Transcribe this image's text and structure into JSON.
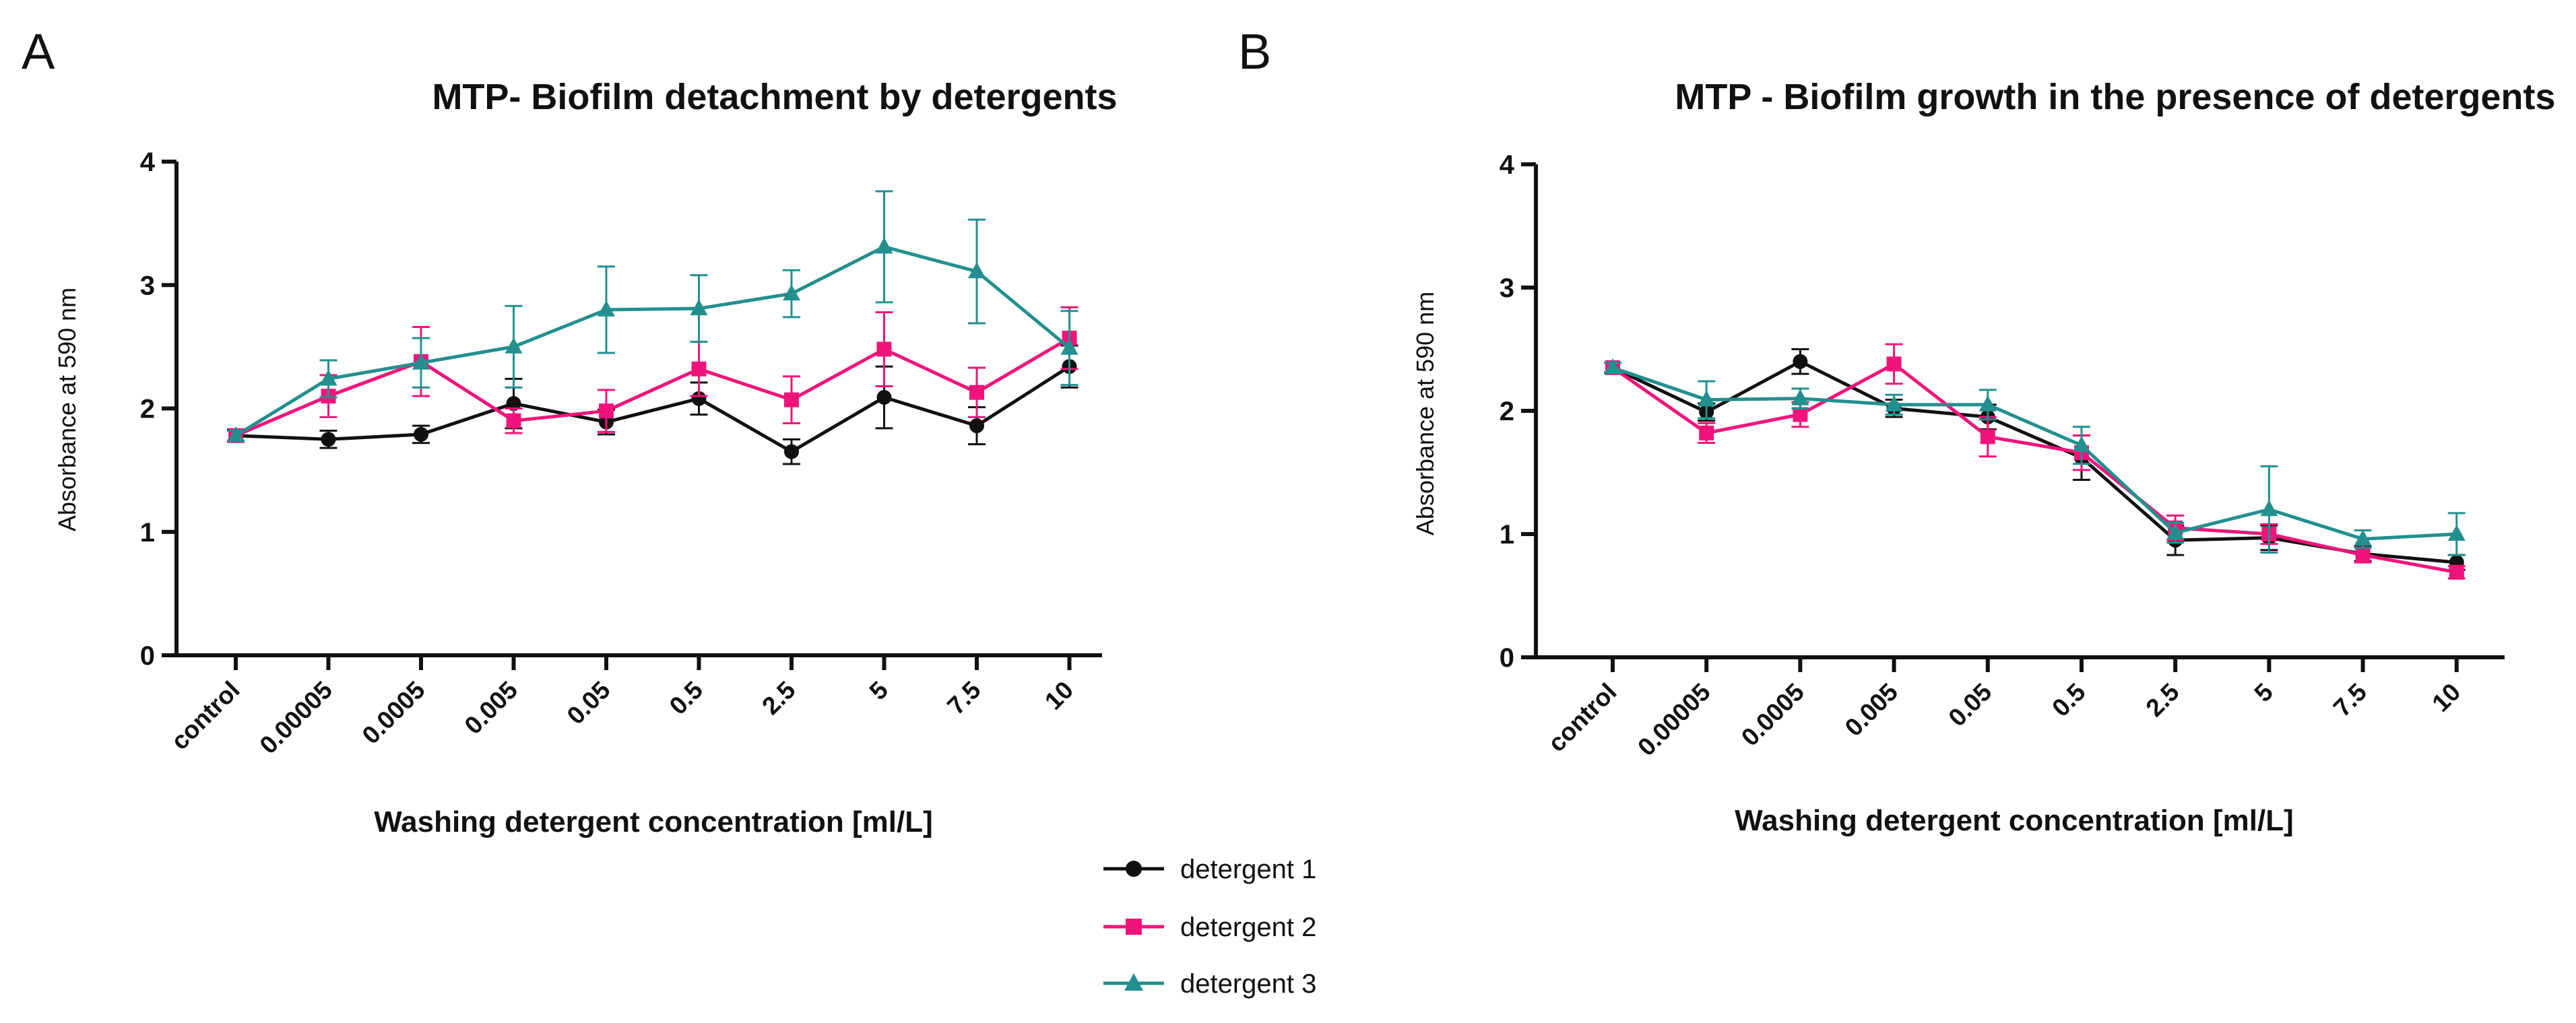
{
  "figure": {
    "legend": {
      "position": "bottom-center",
      "entries": [
        {
          "label": "detergent 1",
          "color": "#111111",
          "marker": "circle"
        },
        {
          "label": "detergent 2",
          "color": "#f0147a",
          "marker": "square"
        },
        {
          "label": "detergent 3",
          "color": "#238f8f",
          "marker": "triangle"
        }
      ]
    }
  },
  "chart_data": [
    {
      "panel_label": "A",
      "type": "line",
      "title": "MTP- Biofilm detachment by detergents",
      "xlabel": "Washing detergent concentration [ml/L]",
      "ylabel": "Absorbance at 590 nm",
      "ylim": [
        0,
        4
      ],
      "yticks": [
        0,
        1,
        2,
        3,
        4
      ],
      "grid": false,
      "categories": [
        "control",
        "0.00005",
        "0.0005",
        "0.005",
        "0.05",
        "0.5",
        "2.5",
        "5",
        "7.5",
        "10"
      ],
      "series": [
        {
          "name": "detergent 1",
          "color": "#111111",
          "marker": "circle",
          "values": [
            1.78,
            1.75,
            1.79,
            2.04,
            1.89,
            2.08,
            1.65,
            2.09,
            1.86,
            2.34
          ],
          "errors": [
            0.05,
            0.07,
            0.07,
            0.2,
            0.1,
            0.13,
            0.1,
            0.25,
            0.15,
            0.17
          ]
        },
        {
          "name": "detergent 2",
          "color": "#f0147a",
          "marker": "square",
          "values": [
            1.78,
            2.1,
            2.38,
            1.9,
            1.98,
            2.32,
            2.07,
            2.48,
            2.13,
            2.57
          ],
          "errors": [
            0.04,
            0.17,
            0.28,
            0.1,
            0.17,
            0.22,
            0.19,
            0.3,
            0.2,
            0.25
          ]
        },
        {
          "name": "detergent 3",
          "color": "#238f8f",
          "marker": "triangle",
          "values": [
            1.78,
            2.24,
            2.37,
            2.5,
            2.8,
            2.81,
            2.93,
            3.31,
            3.11,
            2.49
          ],
          "errors": [
            0.04,
            0.15,
            0.2,
            0.33,
            0.35,
            0.27,
            0.19,
            0.45,
            0.42,
            0.3
          ]
        }
      ]
    },
    {
      "panel_label": "B",
      "type": "line",
      "title": "MTP - Biofilm growth in the presence of detergents",
      "xlabel": "Washing detergent concentration [ml/L]",
      "ylabel": "Absorbance at 590 nm",
      "ylim": [
        0,
        4
      ],
      "yticks": [
        0,
        1,
        2,
        3,
        4
      ],
      "grid": false,
      "categories": [
        "control",
        "0.00005",
        "0.0005",
        "0.005",
        "0.05",
        "0.5",
        "2.5",
        "5",
        "7.5",
        "10"
      ],
      "series": [
        {
          "name": "detergent 1",
          "color": "#111111",
          "marker": "circle",
          "values": [
            2.35,
            1.99,
            2.4,
            2.02,
            1.95,
            1.62,
            0.95,
            0.97,
            0.84,
            0.77
          ],
          "errors": [
            0.04,
            0.07,
            0.1,
            0.07,
            0.1,
            0.18,
            0.12,
            0.1,
            0.06,
            0.06
          ]
        },
        {
          "name": "detergent 2",
          "color": "#f0147a",
          "marker": "square",
          "values": [
            2.35,
            1.82,
            1.97,
            2.38,
            1.79,
            1.66,
            1.05,
            1.0,
            0.83,
            0.69
          ],
          "errors": [
            0.04,
            0.08,
            0.1,
            0.16,
            0.16,
            0.14,
            0.1,
            0.08,
            0.06,
            0.05
          ]
        },
        {
          "name": "detergent 3",
          "color": "#238f8f",
          "marker": "triangle",
          "values": [
            2.35,
            2.09,
            2.1,
            2.05,
            2.05,
            1.72,
            1.01,
            1.2,
            0.96,
            1.0
          ],
          "errors": [
            0.04,
            0.15,
            0.08,
            0.08,
            0.12,
            0.15,
            0.08,
            0.35,
            0.07,
            0.17
          ]
        }
      ]
    }
  ]
}
